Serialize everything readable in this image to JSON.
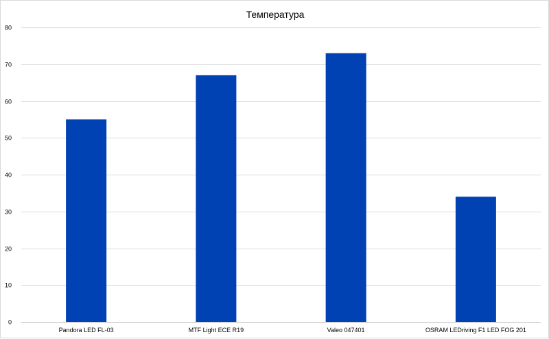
{
  "chart_data": {
    "type": "bar",
    "title": "Температура",
    "xlabel": "",
    "ylabel": "",
    "categories": [
      "Pandora LED FL-03",
      "MTF Light ECE R19",
      "Valeo 047401",
      "OSRAM LEDriving F1 LED FOG 201"
    ],
    "values": [
      55,
      67,
      73,
      34
    ],
    "ylim": [
      0,
      80
    ],
    "yticks": [
      0,
      10,
      20,
      30,
      40,
      50,
      60,
      70,
      80
    ],
    "grid": true,
    "legend": "none",
    "bar_color": "#0041B3"
  }
}
